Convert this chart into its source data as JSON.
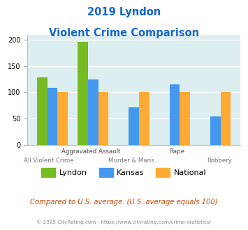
{
  "title_line1": "2019 Lyndon",
  "title_line2": "Violent Crime Comparison",
  "categories": [
    "All Violent Crime",
    "Aggravated Assault",
    "Murder & Mans...",
    "Rape",
    "Robbery"
  ],
  "series": {
    "Lyndon": [
      129,
      196,
      null,
      null,
      null
    ],
    "Kansas": [
      109,
      125,
      72,
      115,
      54
    ],
    "National": [
      100,
      100,
      100,
      100,
      100
    ]
  },
  "colors": {
    "Lyndon": "#77bb22",
    "Kansas": "#4499ee",
    "National": "#ffaa33"
  },
  "ylim": [
    0,
    210
  ],
  "yticks": [
    0,
    50,
    100,
    150,
    200
  ],
  "bar_width": 0.25,
  "bg_color": "#ddeef0",
  "title_color": "#1166cc",
  "footer_text": "Compared to U.S. average. (U.S. average equals 100)",
  "footer_color": "#cc4400",
  "credit_text": "© 2025 CityRating.com - https://www.cityrating.com/crime-statistics/",
  "credit_color": "#888888",
  "x_labels_top": [
    "",
    "Aggravated Assault",
    "",
    "Rape",
    ""
  ],
  "x_labels_bot": [
    "All Violent Crime",
    "",
    "Murder & Mans...",
    "",
    "Robbery"
  ]
}
